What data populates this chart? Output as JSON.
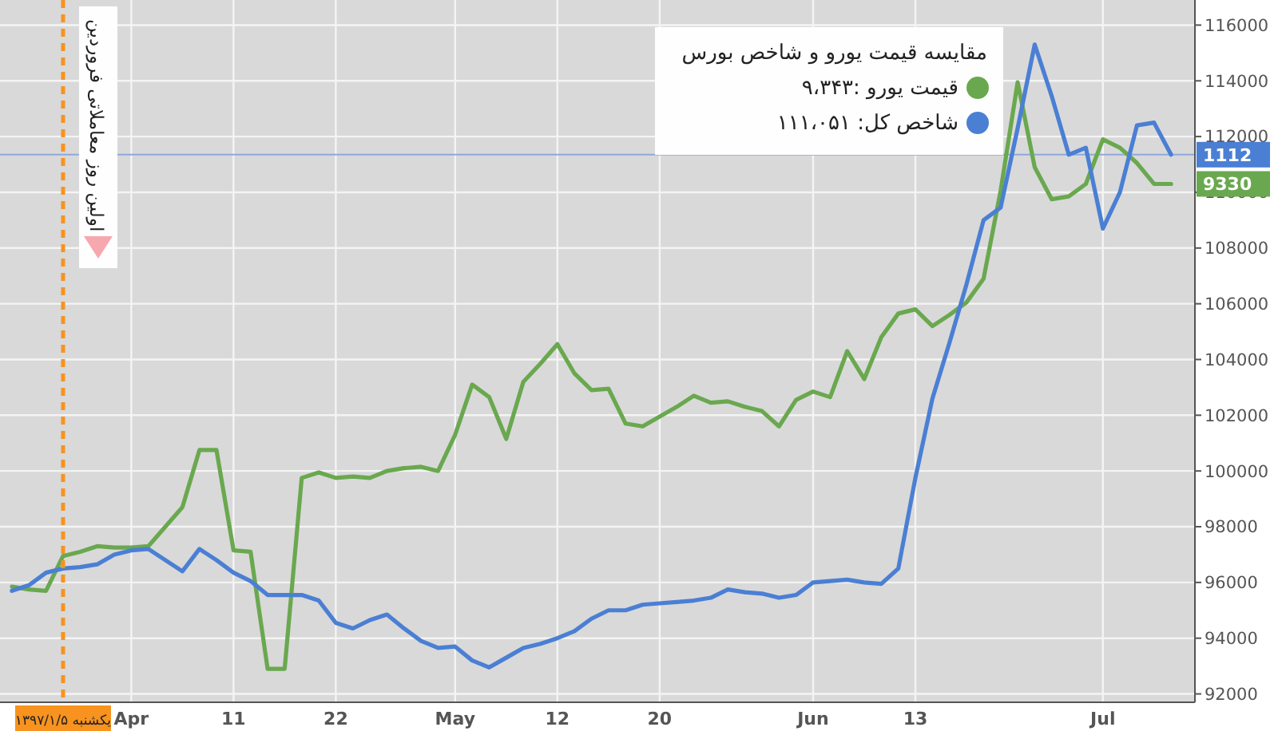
{
  "chart_data": {
    "type": "line",
    "legend_title": "مقایسه قیمت یورو و شاخص بورس",
    "categories": [
      null,
      null,
      null,
      "یکشنبه ۱۳۹۷/۱/۵",
      null,
      null,
      null,
      "Apr",
      null,
      null,
      null,
      null,
      null,
      "11",
      null,
      null,
      null,
      null,
      null,
      "22",
      null,
      null,
      null,
      null,
      null,
      null,
      "May",
      null,
      null,
      null,
      null,
      null,
      "12",
      null,
      null,
      null,
      null,
      null,
      "20",
      null,
      null,
      null,
      null,
      null,
      null,
      null,
      null,
      "Jun",
      null,
      null,
      null,
      null,
      null,
      "13",
      null,
      null,
      null,
      null,
      null,
      null,
      null,
      null,
      null,
      null,
      "Jul",
      null,
      null,
      null,
      null
    ],
    "series": [
      {
        "name": "قیمت یورو :۹،۳۴۳",
        "color": "#6aa84f",
        "values": [
          95850,
          95750,
          95700,
          96950,
          97100,
          97300,
          97250,
          97250,
          97300,
          98000,
          98700,
          100750,
          100750,
          97150,
          97100,
          92900,
          92900,
          99750,
          99950,
          99750,
          99800,
          99750,
          100000,
          100100,
          100150,
          100000,
          101300,
          103100,
          102650,
          101150,
          103200,
          103850,
          104550,
          103500,
          102900,
          102950,
          101700,
          101600,
          101950,
          102300,
          102700,
          102450,
          102500,
          102300,
          102150,
          101600,
          102550,
          102850,
          102650,
          104300,
          103300,
          104800,
          105650,
          105800,
          105200,
          105600,
          106050,
          106900,
          110050,
          113950,
          110900,
          109750,
          109850,
          110300,
          111900,
          111600,
          111050,
          110300,
          110300
        ]
      },
      {
        "name": "شاخص کل: ۱۱۱،۰۵۱",
        "color": "#4a7fd4",
        "values": [
          95700,
          95900,
          96350,
          96500,
          96550,
          96650,
          97000,
          97150,
          97200,
          96800,
          96400,
          97200,
          96800,
          96350,
          96050,
          95550,
          95550,
          95550,
          95350,
          94550,
          94350,
          94650,
          94850,
          94350,
          93900,
          93650,
          93700,
          93200,
          92950,
          93300,
          93650,
          93800,
          94000,
          94250,
          94700,
          95000,
          95000,
          95200,
          95250,
          95300,
          95350,
          95450,
          95750,
          95650,
          95600,
          95450,
          95550,
          96000,
          96050,
          96100,
          96000,
          95950,
          96500,
          99750,
          102600,
          104600,
          106700,
          109000,
          109450,
          112300,
          115300,
          113450,
          111350,
          111600,
          108700,
          110000,
          112400,
          112500,
          111350
        ]
      }
    ],
    "ylim": [
      91700,
      116900
    ],
    "yticks": [
      92000,
      94000,
      96000,
      98000,
      100000,
      102000,
      104000,
      106000,
      108000,
      110000,
      112000,
      114000,
      116000
    ],
    "grid": true,
    "legend": "top right",
    "ref_lines": [
      {
        "axis": "x",
        "value": "یکشنبه ۱۳۹۷/۱/۵",
        "label": "اولین روز معاملاتی فروردین",
        "color": "#f7931e",
        "line_style": "dashed"
      },
      {
        "axis": "y",
        "value": 111350,
        "color": "#8fa8dc",
        "line_style": "solid"
      }
    ],
    "annotations": [
      "9330",
      "1112"
    ]
  }
}
